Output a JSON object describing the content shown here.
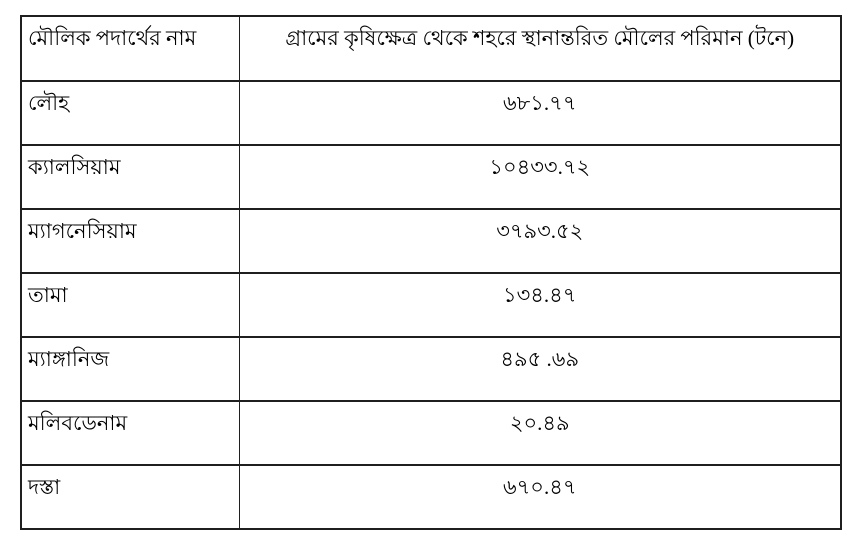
{
  "page": {
    "background_color": "#ffffff",
    "border_color": "#1f1f1f",
    "text_color": "#000000"
  },
  "table": {
    "columns": [
      {
        "key": "name",
        "label": "মৌলিক পদার্থের নাম"
      },
      {
        "key": "value",
        "label": "গ্রামের কৃষিক্ষেত্র থেকে শহরে স্থানান্তরিত মৌলের পরিমান (টনে)"
      }
    ],
    "rows": [
      {
        "name": "লৌহ",
        "value": "৬৮১.৭৭"
      },
      {
        "name": "ক্যালসিয়াম",
        "value": "১০৪৩৩.৭২"
      },
      {
        "name": "ম্যাগনেসিয়াম",
        "value": "৩৭৯৩.৫২"
      },
      {
        "name": "তামা",
        "value": "১৩৪.৪৭"
      },
      {
        "name": "ম্যাঙ্গানিজ",
        "value": "৪৯৫ .৬৯"
      },
      {
        "name": "মলিবডেনাম",
        "value": "২০.৪৯"
      },
      {
        "name": "দস্তা",
        "value": "৬৭০.৪৭"
      }
    ]
  }
}
